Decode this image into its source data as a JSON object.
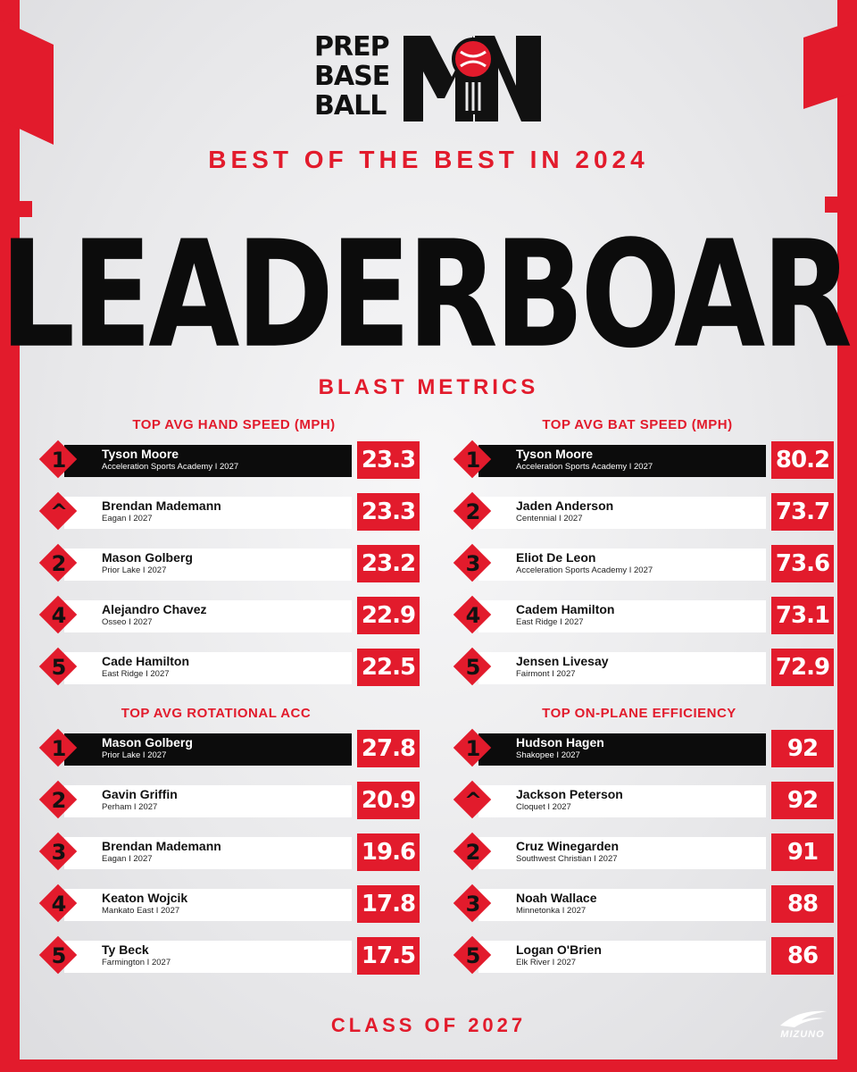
{
  "brand": {
    "logo_lines": [
      "PREP",
      "BASE",
      "BALL"
    ],
    "logo_mark": "MN",
    "sponsor": "MIZUNO"
  },
  "header": {
    "kicker": "BEST OF THE BEST IN 2024",
    "title": "LEADERBOARD",
    "section": "BLAST METRICS"
  },
  "colors": {
    "accent": "#e21b2c",
    "dark": "#0c0c0c",
    "background": "#e9e9ea"
  },
  "panels": [
    {
      "title": "TOP AVG HAND SPEED (MPH)",
      "rows": [
        {
          "rank": "1",
          "name": "Tyson Moore",
          "school": "Acceleration Sports Academy I 2027",
          "value": "23.3"
        },
        {
          "rank": "^",
          "name": "Brendan Mademann",
          "school": "Eagan I 2027",
          "value": "23.3"
        },
        {
          "rank": "2",
          "name": "Mason Golberg",
          "school": "Prior Lake I 2027",
          "value": "23.2"
        },
        {
          "rank": "4",
          "name": "Alejandro Chavez",
          "school": "Osseo I 2027",
          "value": "22.9"
        },
        {
          "rank": "5",
          "name": "Cade Hamilton",
          "school": "East Ridge I 2027",
          "value": "22.5"
        }
      ]
    },
    {
      "title": "TOP AVG BAT SPEED (MPH)",
      "rows": [
        {
          "rank": "1",
          "name": "Tyson Moore",
          "school": "Acceleration Sports Academy I 2027",
          "value": "80.2"
        },
        {
          "rank": "2",
          "name": "Jaden Anderson",
          "school": "Centennial I 2027",
          "value": "73.7"
        },
        {
          "rank": "3",
          "name": "Eliot De Leon",
          "school": "Acceleration Sports Academy I 2027",
          "value": "73.6"
        },
        {
          "rank": "4",
          "name": "Cadem Hamilton",
          "school": "East Ridge I 2027",
          "value": "73.1"
        },
        {
          "rank": "5",
          "name": "Jensen Livesay",
          "school": "Fairmont I 2027",
          "value": "72.9"
        }
      ]
    },
    {
      "title": "TOP AVG ROTATIONAL ACC",
      "rows": [
        {
          "rank": "1",
          "name": "Mason Golberg",
          "school": "Prior Lake I 2027",
          "value": "27.8"
        },
        {
          "rank": "2",
          "name": "Gavin Griffin",
          "school": "Perham I 2027",
          "value": "20.9"
        },
        {
          "rank": "3",
          "name": "Brendan Mademann",
          "school": "Eagan I 2027",
          "value": "19.6"
        },
        {
          "rank": "4",
          "name": "Keaton Wojcik",
          "school": "Mankato East I 2027",
          "value": "17.8"
        },
        {
          "rank": "5",
          "name": "Ty Beck",
          "school": "Farmington I 2027",
          "value": "17.5"
        }
      ]
    },
    {
      "title": "TOP ON-PLANE EFFICIENCY",
      "rows": [
        {
          "rank": "1",
          "name": "Hudson Hagen",
          "school": "Shakopee I 2027",
          "value": "92"
        },
        {
          "rank": "^",
          "name": "Jackson Peterson",
          "school": "Cloquet I 2027",
          "value": "92"
        },
        {
          "rank": "2",
          "name": "Cruz Winegarden",
          "school": "Southwest Christian I 2027",
          "value": "91"
        },
        {
          "rank": "3",
          "name": "Noah Wallace",
          "school": "Minnetonka I 2027",
          "value": "88"
        },
        {
          "rank": "5",
          "name": "Logan O'Brien",
          "school": "Elk River I 2027",
          "value": "86"
        }
      ]
    }
  ],
  "footer": {
    "text": "CLASS OF 2027"
  }
}
